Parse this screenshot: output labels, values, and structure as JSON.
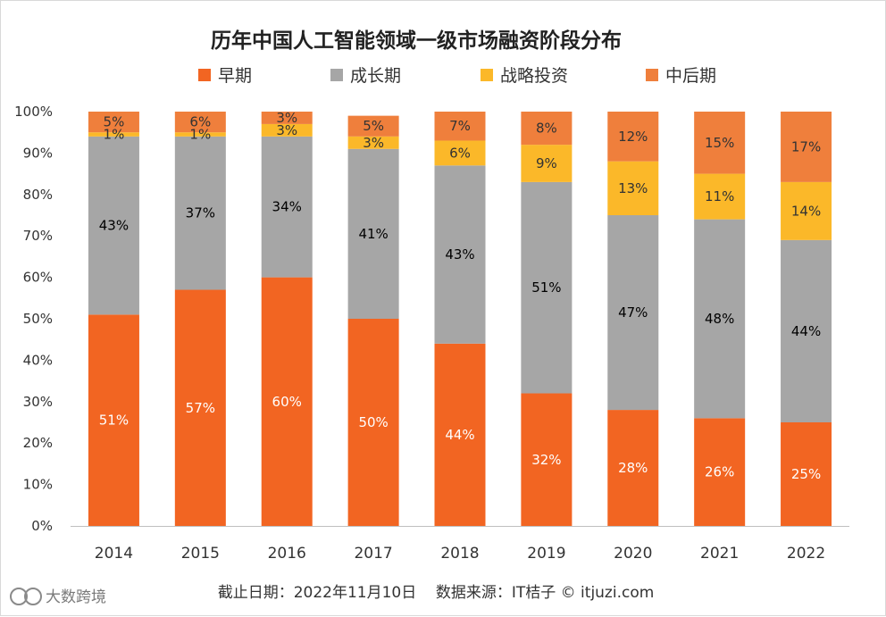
{
  "chart_data": {
    "type": "bar",
    "stacked": true,
    "percent": true,
    "title": "历年中国人工智能领域一级市场融资阶段分布",
    "categories": [
      "2014",
      "2015",
      "2016",
      "2017",
      "2018",
      "2019",
      "2020",
      "2021",
      "2022"
    ],
    "series": [
      {
        "name": "早期",
        "color": "#f26522",
        "label_color": "#ffffff",
        "values": [
          51,
          57,
          60,
          50,
          44,
          32,
          28,
          26,
          25
        ]
      },
      {
        "name": "成长期",
        "color": "#a6a6a6",
        "label_color": "#000000",
        "values": [
          43,
          37,
          34,
          41,
          43,
          51,
          47,
          48,
          44
        ]
      },
      {
        "name": "战略投资",
        "color": "#fbb829",
        "label_color": "#333333",
        "values": [
          1,
          1,
          3,
          3,
          6,
          9,
          13,
          11,
          14
        ]
      },
      {
        "name": "中后期",
        "color": "#ef7f3c",
        "label_color": "#333333",
        "values": [
          5,
          6,
          3,
          5,
          7,
          8,
          12,
          15,
          17
        ]
      }
    ],
    "data_labels": [
      [
        "51%",
        "57%",
        "60%",
        "50%",
        "44%",
        "32%",
        "28%",
        "26%",
        "25%"
      ],
      [
        "43%",
        "37%",
        "34%",
        "41%",
        "43%",
        "51%",
        "47%",
        "48%",
        "44%"
      ],
      [
        "1%",
        "1%",
        "3%",
        "3%",
        "6%",
        "9%",
        "13%",
        "11%",
        "14%"
      ],
      [
        "5%",
        "6%",
        "3%",
        "5%",
        "7%",
        "8%",
        "12%",
        "15%",
        "17%"
      ]
    ],
    "ylim": [
      0,
      100
    ],
    "yticks": [
      0,
      10,
      20,
      30,
      40,
      50,
      60,
      70,
      80,
      90,
      100
    ],
    "ytick_suffix": "%",
    "xlabel": "",
    "ylabel": "",
    "legend_position": "top",
    "grid": false
  },
  "footer": {
    "text": "截止日期：2022年11月10日    数据来源：IT桔子 © itjuzi.com"
  },
  "watermark": {
    "text": "大数跨境"
  }
}
